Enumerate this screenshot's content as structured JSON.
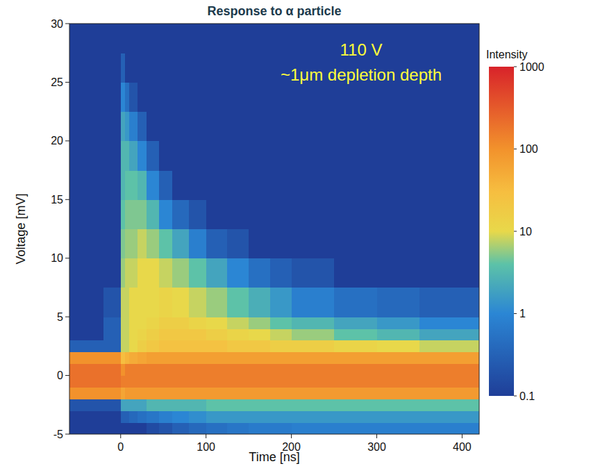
{
  "chart_data": {
    "type": "heatmap",
    "title": "Response to α particle",
    "annotations": [
      "110 V",
      "~1μm depletion depth"
    ],
    "x_label": "Time [ns]",
    "y_label": "Voltage [mV]",
    "xlim": [
      -60,
      420
    ],
    "ylim": [
      -5,
      30
    ],
    "xticks": [
      0,
      100,
      200,
      300,
      400
    ],
    "yticks": [
      -5,
      0,
      5,
      10,
      15,
      20,
      25,
      30
    ],
    "grid": false,
    "x_edges": [
      -60,
      -20,
      0,
      5,
      10,
      20,
      30,
      45,
      60,
      80,
      100,
      125,
      150,
      175,
      200,
      250,
      300,
      350,
      420
    ],
    "y_edges": [
      -5,
      -4,
      -3,
      -2,
      -1,
      0,
      1,
      2,
      3,
      4,
      5,
      7.5,
      10,
      12.5,
      15,
      17.5,
      20,
      22.5,
      25,
      27.5,
      30
    ],
    "cells": [
      [
        0.1,
        0.1,
        0.1,
        0.1,
        0.1,
        0.1,
        0.15,
        0.2,
        0.3,
        0.4,
        0.5,
        0.6,
        0.7,
        0.7,
        0.8,
        0.8,
        0.8,
        0.8
      ],
      [
        0.1,
        0.1,
        0.3,
        0.3,
        0.4,
        0.5,
        0.6,
        0.8,
        1,
        1.2,
        1.5,
        1.5,
        1.5,
        1.5,
        1.5,
        1.5,
        1.5,
        1.5
      ],
      [
        0.2,
        0.2,
        2,
        2,
        2,
        2,
        3,
        3,
        3,
        3,
        4,
        4,
        4,
        4,
        4,
        4,
        4,
        4
      ],
      [
        100,
        100,
        60,
        80,
        80,
        80,
        80,
        80,
        80,
        80,
        80,
        80,
        80,
        80,
        80,
        80,
        80,
        80
      ],
      [
        200,
        200,
        150,
        150,
        150,
        150,
        150,
        150,
        150,
        150,
        150,
        150,
        150,
        150,
        150,
        150,
        150,
        150
      ],
      [
        200,
        200,
        100,
        150,
        150,
        150,
        150,
        150,
        150,
        150,
        150,
        150,
        150,
        150,
        150,
        150,
        150,
        150
      ],
      [
        100,
        100,
        30,
        40,
        50,
        60,
        70,
        70,
        70,
        70,
        70,
        70,
        70,
        70,
        70,
        70,
        70,
        70
      ],
      [
        0.3,
        0.3,
        8,
        8,
        10,
        15,
        20,
        25,
        25,
        25,
        25,
        20,
        20,
        15,
        15,
        12,
        10,
        8
      ],
      [
        0.1,
        0.3,
        8,
        8,
        10,
        12,
        15,
        20,
        20,
        20,
        15,
        12,
        10,
        8,
        6,
        4,
        3,
        2
      ],
      [
        0.1,
        0.3,
        8,
        8,
        10,
        10,
        12,
        15,
        15,
        12,
        10,
        8,
        6,
        4,
        3,
        2,
        1.5,
        1
      ],
      [
        0.1,
        0.2,
        8,
        8,
        10,
        10,
        10,
        12,
        10,
        8,
        6,
        4,
        2.5,
        1.5,
        0.8,
        0.5,
        0.4,
        0.3
      ],
      [
        0.1,
        0.1,
        6,
        8,
        8,
        10,
        10,
        8,
        6,
        4,
        2,
        1,
        0.5,
        0.3,
        0.2,
        0.1,
        0.1,
        0.1
      ],
      [
        0.1,
        0.1,
        5,
        6,
        6,
        8,
        6,
        4,
        2,
        0.8,
        0.3,
        0.2,
        0.1,
        0.1,
        0.1,
        0.1,
        0.1,
        0.1
      ],
      [
        0.1,
        0.1,
        4,
        5,
        5,
        5,
        3,
        1,
        0.4,
        0.2,
        0.1,
        0.1,
        0.1,
        0.1,
        0.1,
        0.1,
        0.1,
        0.1
      ],
      [
        0.1,
        0.1,
        3,
        4,
        4,
        3,
        1,
        0.3,
        0.1,
        0.1,
        0.1,
        0.1,
        0.1,
        0.1,
        0.1,
        0.1,
        0.1,
        0.1
      ],
      [
        0.1,
        0.1,
        3,
        3,
        2,
        1,
        0.3,
        0.1,
        0.1,
        0.1,
        0.1,
        0.1,
        0.1,
        0.1,
        0.1,
        0.1,
        0.1,
        0.1
      ],
      [
        0.1,
        0.1,
        2,
        1.5,
        0.8,
        0.3,
        0.1,
        0.1,
        0.1,
        0.1,
        0.1,
        0.1,
        0.1,
        0.1,
        0.1,
        0.1,
        0.1,
        0.1
      ],
      [
        0.1,
        0.1,
        1,
        0.5,
        0.2,
        0.1,
        0.1,
        0.1,
        0.1,
        0.1,
        0.1,
        0.1,
        0.1,
        0.1,
        0.1,
        0.1,
        0.1,
        0.1
      ],
      [
        0.1,
        0.1,
        0.3,
        0.1,
        0.1,
        0.1,
        0.1,
        0.1,
        0.1,
        0.1,
        0.1,
        0.1,
        0.1,
        0.1,
        0.1,
        0.1,
        0.1,
        0.1
      ],
      [
        0.1,
        0.1,
        0.1,
        0.1,
        0.1,
        0.1,
        0.1,
        0.1,
        0.1,
        0.1,
        0.1,
        0.1,
        0.1,
        0.1,
        0.1,
        0.1,
        0.1,
        0.1
      ]
    ],
    "colorbar": {
      "label": "Intensity",
      "range": [
        0.1,
        1000
      ],
      "ticks": [
        0.1,
        1,
        10,
        100,
        1000
      ],
      "log": true
    }
  }
}
